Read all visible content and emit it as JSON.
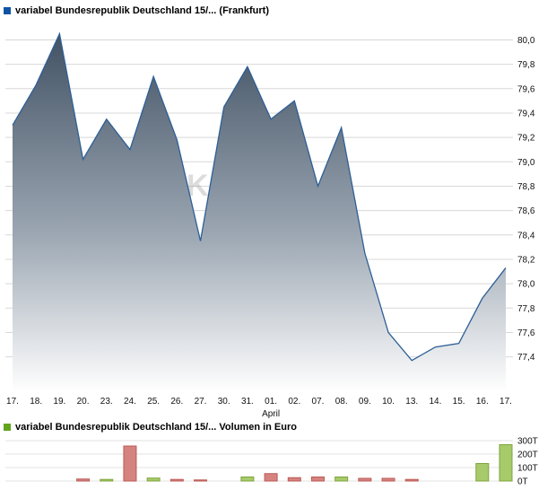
{
  "price_chart": {
    "title": "variabel Bundesrepublik Deutschland 15/... (Frankfurt)",
    "marker_color": "#0f54a4"
  },
  "volume_chart": {
    "title": "variabel Bundesrepublik Deutschland 15/... Volumen in Euro",
    "marker_color": "#61a51f"
  },
  "watermark": "K",
  "chart_data": [
    {
      "type": "area",
      "title": "variabel Bundesrepublik Deutschland 15/... (Frankfurt)",
      "x": [
        "17.",
        "18.",
        "19.",
        "20.",
        "23.",
        "24.",
        "25.",
        "26.",
        "27.",
        "30.",
        "31.",
        "01.",
        "02.",
        "07.",
        "08.",
        "09.",
        "10.",
        "13.",
        "14.",
        "15.",
        "16.",
        "17."
      ],
      "month_label": "April",
      "month_label_index": 11,
      "values": [
        79.3,
        79.63,
        80.05,
        79.02,
        79.35,
        79.1,
        79.7,
        79.18,
        78.35,
        79.45,
        79.78,
        79.35,
        79.5,
        78.8,
        79.28,
        78.25,
        77.6,
        77.37,
        77.48,
        77.51,
        77.88,
        78.13
      ],
      "ylim": [
        77.11,
        80.18
      ],
      "yticks": [
        80.0,
        79.8,
        79.6,
        79.4,
        79.2,
        79.0,
        78.8,
        78.6,
        78.4,
        78.2,
        78.0,
        77.8,
        77.6,
        77.4
      ],
      "ytick_labels": [
        "80,0",
        "79,8",
        "79,6",
        "79,4",
        "79,2",
        "79,0",
        "78,8",
        "78,6",
        "78,4",
        "78,2",
        "78,0",
        "77,8",
        "77,6",
        "77,4"
      ],
      "grid": true,
      "legend_position": "none",
      "line_color": "#2d5f96",
      "fill_top": "#425264",
      "fill_mid": "#9aa5b1",
      "fill_bottom": "#ffffff",
      "grid_color": "#d8d8d8"
    },
    {
      "type": "bar",
      "categories": [
        "17.",
        "18.",
        "19.",
        "20.",
        "23.",
        "24.",
        "25.",
        "26.",
        "27.",
        "30.",
        "31.",
        "01.",
        "02.",
        "07.",
        "08.",
        "09.",
        "10.",
        "13.",
        "14.",
        "15.",
        "16.",
        "17."
      ],
      "values": [
        0,
        0,
        0,
        15,
        12,
        260,
        22,
        12,
        8,
        0,
        30,
        55,
        25,
        30,
        30,
        20,
        20,
        12,
        0,
        0,
        130,
        270
      ],
      "unit": "T",
      "directions": [
        "none",
        "none",
        "none",
        "down",
        "up",
        "down",
        "up",
        "down",
        "down",
        "none",
        "up",
        "down",
        "down",
        "down",
        "up",
        "down",
        "down",
        "down",
        "none",
        "none",
        "up",
        "up"
      ],
      "title": "variabel Bundesrepublik Deutschland 15/... Volumen in Euro",
      "ylabel": "Volumen in Euro",
      "ylim": [
        0,
        320
      ],
      "yticks": [
        0,
        100,
        200,
        300
      ],
      "ytick_labels": [
        "0T",
        "100T",
        "200T",
        "300T"
      ],
      "up_fill": "#a7ca6b",
      "up_stroke": "#7ea43c",
      "down_fill": "#d5837f",
      "down_stroke": "#bb5a54",
      "grid_color": "#e3e3e3"
    }
  ]
}
